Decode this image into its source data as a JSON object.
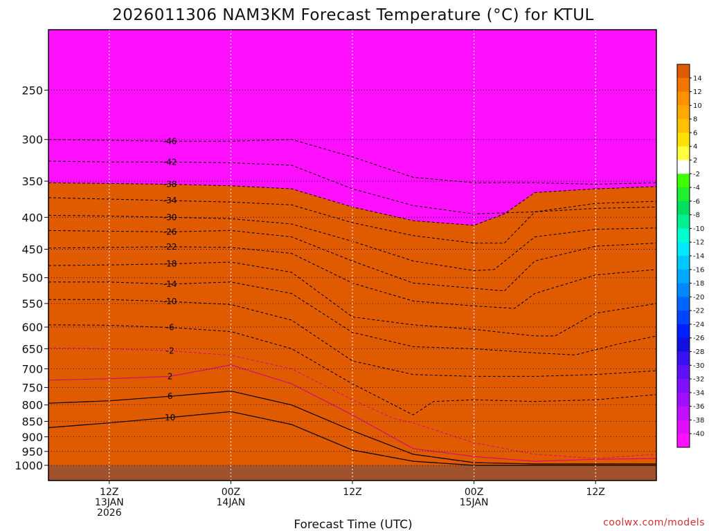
{
  "chart_data": {
    "type": "heatmap",
    "title": "2026011306 NAM3KM Forecast Temperature (°C) for KTUL",
    "xlabel": "Forecast Time (UTC)",
    "ylabel": "",
    "y_scale": "log",
    "y_reversed": true,
    "ylim": [
      1000,
      200
    ],
    "y_ticks": [
      250,
      300,
      350,
      400,
      450,
      500,
      550,
      600,
      650,
      700,
      750,
      800,
      850,
      900,
      950,
      1000
    ],
    "xlim": [
      0,
      60
    ],
    "x_ticks": [
      {
        "x": 6,
        "lines": [
          "12Z",
          "13JAN",
          "2026"
        ]
      },
      {
        "x": 18,
        "lines": [
          "00Z",
          "14JAN"
        ]
      },
      {
        "x": 30,
        "lines": [
          "12Z"
        ]
      },
      {
        "x": 42,
        "lines": [
          "00Z",
          "15JAN"
        ]
      },
      {
        "x": 54,
        "lines": [
          "12Z"
        ]
      }
    ],
    "grid": true,
    "colorbar": {
      "placement": "right",
      "tick_labels": [
        "14",
        "12",
        "10",
        "8",
        "6",
        "4",
        "2",
        "-2",
        "-4",
        "-6",
        "-8",
        "-10",
        "-12",
        "-14",
        "-16",
        "-18",
        "-20",
        "-22",
        "-24",
        "-26",
        "-28",
        "-30",
        "-32",
        "-34",
        "-36",
        "-38",
        "-40"
      ],
      "colors": [
        "#e05a00",
        "#f27500",
        "#ff9000",
        "#ffa800",
        "#ffc000",
        "#ffe000",
        "#ffff40",
        "#ffffff",
        "#40ff00",
        "#20ee30",
        "#00e060",
        "#00f090",
        "#00ffd0",
        "#00e8ff",
        "#00c8ff",
        "#00a8ff",
        "#0088ff",
        "#0066ff",
        "#0044ff",
        "#0020ff",
        "#1010e0",
        "#3a10f0",
        "#6010f8",
        "#8010ff",
        "#a010ff",
        "#c010ff",
        "#e010ff",
        "#ff10ff"
      ]
    },
    "isotherms": [
      {
        "value": -46,
        "label": "-46",
        "points": [
          [
            0,
            300
          ],
          [
            6,
            301
          ],
          [
            12,
            302
          ],
          [
            18,
            302
          ],
          [
            24,
            300
          ],
          [
            30,
            320
          ],
          [
            36,
            345
          ],
          [
            42,
            352
          ],
          [
            48,
            352
          ],
          [
            54,
            354
          ],
          [
            60,
            352
          ]
        ]
      },
      {
        "value": -42,
        "label": "-42",
        "points": [
          [
            0,
            325
          ],
          [
            6,
            326
          ],
          [
            12,
            326
          ],
          [
            18,
            327
          ],
          [
            24,
            330
          ],
          [
            30,
            360
          ],
          [
            36,
            383
          ],
          [
            42,
            395
          ],
          [
            48,
            392
          ],
          [
            54,
            387
          ],
          [
            60,
            385
          ]
        ]
      },
      {
        "value": -38,
        "label": "-38",
        "points": [
          [
            0,
            352
          ],
          [
            6,
            353
          ],
          [
            12,
            354
          ],
          [
            18,
            356
          ],
          [
            24,
            360
          ],
          [
            30,
            385
          ],
          [
            36,
            405
          ],
          [
            42,
            412
          ],
          [
            45,
            395
          ],
          [
            48,
            365
          ],
          [
            54,
            360
          ],
          [
            60,
            357
          ]
        ]
      },
      {
        "value": -34,
        "label": "-34",
        "points": [
          [
            0,
            372
          ],
          [
            6,
            374
          ],
          [
            12,
            376
          ],
          [
            18,
            378
          ],
          [
            24,
            382
          ],
          [
            30,
            408
          ],
          [
            36,
            428
          ],
          [
            42,
            440
          ],
          [
            45,
            440
          ],
          [
            48,
            392
          ],
          [
            54,
            380
          ],
          [
            60,
            377
          ]
        ]
      },
      {
        "value": -30,
        "label": "-30",
        "points": [
          [
            0,
            397
          ],
          [
            6,
            398
          ],
          [
            12,
            400
          ],
          [
            18,
            402
          ],
          [
            24,
            410
          ],
          [
            30,
            437
          ],
          [
            36,
            470
          ],
          [
            42,
            487
          ],
          [
            44,
            485
          ],
          [
            48,
            430
          ],
          [
            54,
            418
          ],
          [
            60,
            416
          ]
        ]
      },
      {
        "value": -26,
        "label": "-26",
        "points": [
          [
            0,
            420
          ],
          [
            6,
            421
          ],
          [
            12,
            422
          ],
          [
            18,
            420
          ],
          [
            24,
            430
          ],
          [
            30,
            470
          ],
          [
            36,
            510
          ],
          [
            42,
            520
          ],
          [
            45,
            525
          ],
          [
            48,
            470
          ],
          [
            54,
            445
          ],
          [
            60,
            440
          ]
        ]
      },
      {
        "value": -22,
        "label": "-22",
        "points": [
          [
            0,
            448
          ],
          [
            6,
            447
          ],
          [
            12,
            446
          ],
          [
            18,
            447
          ],
          [
            24,
            457
          ],
          [
            30,
            510
          ],
          [
            36,
            545
          ],
          [
            42,
            555
          ],
          [
            46,
            560
          ],
          [
            48,
            530
          ],
          [
            54,
            495
          ],
          [
            60,
            485
          ]
        ]
      },
      {
        "value": -18,
        "label": "-18",
        "points": [
          [
            0,
            478
          ],
          [
            6,
            477
          ],
          [
            12,
            475
          ],
          [
            18,
            472
          ],
          [
            24,
            490
          ],
          [
            30,
            578
          ],
          [
            36,
            595
          ],
          [
            42,
            605
          ],
          [
            48,
            620
          ],
          [
            50,
            620
          ],
          [
            54,
            570
          ],
          [
            60,
            550
          ]
        ]
      },
      {
        "value": -14,
        "label": "-14",
        "points": [
          [
            0,
            508
          ],
          [
            6,
            508
          ],
          [
            12,
            512
          ],
          [
            18,
            508
          ],
          [
            24,
            530
          ],
          [
            30,
            612
          ],
          [
            36,
            645
          ],
          [
            42,
            650
          ],
          [
            48,
            660
          ],
          [
            52,
            665
          ],
          [
            56,
            640
          ],
          [
            60,
            620
          ]
        ]
      },
      {
        "value": -10,
        "label": "-10",
        "points": [
          [
            0,
            542
          ],
          [
            6,
            542
          ],
          [
            12,
            546
          ],
          [
            18,
            552
          ],
          [
            24,
            585
          ],
          [
            30,
            680
          ],
          [
            36,
            715
          ],
          [
            42,
            720
          ],
          [
            48,
            720
          ],
          [
            54,
            715
          ],
          [
            60,
            705
          ]
        ]
      },
      {
        "value": -6,
        "label": "-6",
        "points": [
          [
            0,
            595
          ],
          [
            6,
            596
          ],
          [
            12,
            601
          ],
          [
            18,
            610
          ],
          [
            24,
            650
          ],
          [
            30,
            740
          ],
          [
            36,
            830
          ],
          [
            38,
            790
          ],
          [
            42,
            785
          ],
          [
            48,
            790
          ],
          [
            54,
            785
          ],
          [
            60,
            770
          ]
        ]
      },
      {
        "value": -2,
        "label": "-2",
        "points": [
          [
            0,
            648
          ],
          [
            6,
            650
          ],
          [
            12,
            655
          ],
          [
            18,
            666
          ],
          [
            24,
            700
          ],
          [
            30,
            785
          ],
          [
            34,
            840
          ],
          [
            36,
            855
          ],
          [
            42,
            920
          ],
          [
            48,
            960
          ],
          [
            54,
            975
          ],
          [
            60,
            960
          ]
        ]
      },
      {
        "value": 2,
        "label": "2",
        "points": [
          [
            0,
            730
          ],
          [
            6,
            726
          ],
          [
            12,
            720
          ],
          [
            16,
            700
          ],
          [
            18,
            690
          ],
          [
            24,
            740
          ],
          [
            30,
            830
          ],
          [
            36,
            940
          ],
          [
            42,
            968
          ],
          [
            48,
            985
          ],
          [
            54,
            978
          ],
          [
            60,
            975
          ]
        ]
      },
      {
        "value": 6,
        "label": "6",
        "points": [
          [
            0,
            795
          ],
          [
            6,
            788
          ],
          [
            12,
            775
          ],
          [
            18,
            760
          ],
          [
            24,
            800
          ],
          [
            30,
            880
          ],
          [
            36,
            960
          ],
          [
            42,
            990
          ],
          [
            48,
            995
          ],
          [
            54,
            995
          ],
          [
            60,
            995
          ]
        ]
      },
      {
        "value": 10,
        "label": "10",
        "points": [
          [
            0,
            870
          ],
          [
            6,
            855
          ],
          [
            12,
            838
          ],
          [
            18,
            820
          ],
          [
            24,
            860
          ],
          [
            30,
            945
          ],
          [
            36,
            985
          ],
          [
            42,
            1000
          ],
          [
            48,
            1000
          ],
          [
            54,
            1000
          ],
          [
            60,
            1000
          ]
        ]
      }
    ]
  },
  "credit": "coolwx.com/models"
}
